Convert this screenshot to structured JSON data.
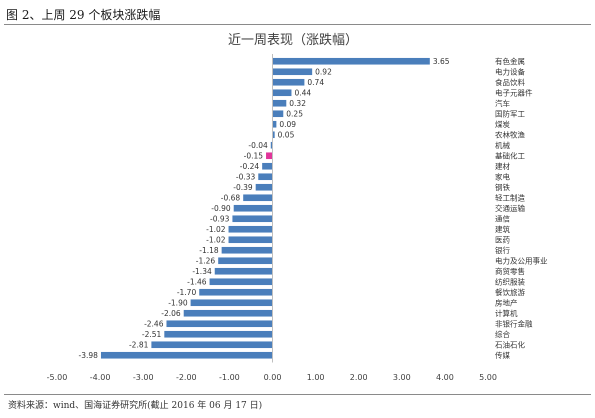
{
  "figure": {
    "caption": "图 2、上周 29 个板块涨跌幅",
    "source": "资料来源：wind、国海证券研究所(截止 2016 年 06 月 17 日)"
  },
  "chart_data": {
    "type": "bar",
    "orientation": "horizontal",
    "title": "近一周表现（涨跌幅）",
    "categories": [
      "有色金属",
      "电力设备",
      "食品饮料",
      "电子元器件",
      "汽车",
      "国防军工",
      "煤炭",
      "农林牧渔",
      "机械",
      "基础化工",
      "建材",
      "家电",
      "钢铁",
      "轻工制造",
      "交通运输",
      "通信",
      "建筑",
      "医药",
      "银行",
      "电力及公用事业",
      "商贸零售",
      "纺织服装",
      "餐饮旅游",
      "房地产",
      "计算机",
      "非银行金融",
      "综合",
      "石油石化",
      "传媒"
    ],
    "values": [
      3.65,
      0.92,
      0.74,
      0.44,
      0.32,
      0.25,
      0.09,
      0.05,
      -0.04,
      -0.15,
      -0.24,
      -0.33,
      -0.39,
      -0.68,
      -0.9,
      -0.93,
      -1.02,
      -1.02,
      -1.18,
      -1.26,
      -1.34,
      -1.46,
      -1.7,
      -1.9,
      -2.06,
      -2.46,
      -2.51,
      -2.81,
      -3.98
    ],
    "value_labels": [
      "3.65",
      "0.92",
      "0.74",
      "0.44",
      "0.32",
      "0.25",
      "0.09",
      "0.05",
      "-0.04",
      "-0.15",
      "-0.24",
      "-0.33",
      "-0.39",
      "-0.68",
      "-0.90",
      "-0.93",
      "-1.02",
      "-1.02",
      "-1.18",
      "-1.26",
      "-1.34",
      "-1.46",
      "-1.70",
      "-1.90",
      "-2.06",
      "-2.46",
      "-2.51",
      "-2.81",
      "-3.98"
    ],
    "highlight_category": "基础化工",
    "xlim": [
      -5,
      5
    ],
    "x_ticks": [
      -5,
      -4,
      -3,
      -2,
      -1,
      0,
      1,
      2,
      3,
      4,
      5
    ],
    "x_tick_labels": [
      "-5.00",
      "-4.00",
      "-3.00",
      "-2.00",
      "-1.00",
      "0.00",
      "1.00",
      "2.00",
      "3.00",
      "4.00",
      "5.00"
    ],
    "xlabel": "",
    "ylabel": "",
    "grid": false,
    "legend": "none",
    "colors": {
      "bar": "#4a7ebb",
      "highlight": "#e0359a",
      "axis": "#bfbfbf"
    }
  }
}
